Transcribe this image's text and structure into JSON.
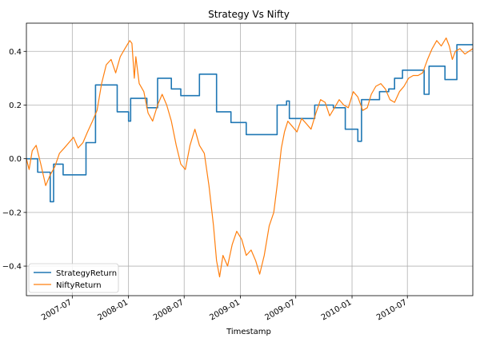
{
  "chart_data": {
    "type": "line",
    "title": "Strategy Vs Nifty",
    "xlabel": "Timestamp",
    "ylabel": "",
    "x_range": [
      "2007-02-01",
      "2011-01-31"
    ],
    "ylim": [
      -0.51,
      0.505
    ],
    "x_ticks": [
      {
        "date": "2007-07-01",
        "label": "2007-07"
      },
      {
        "date": "2008-01-01",
        "label": "2008-01"
      },
      {
        "date": "2008-07-01",
        "label": "2008-07"
      },
      {
        "date": "2009-01-01",
        "label": "2009-01"
      },
      {
        "date": "2009-07-01",
        "label": "2009-07"
      },
      {
        "date": "2010-01-01",
        "label": "2010-01"
      },
      {
        "date": "2010-07-01",
        "label": "2010-07"
      }
    ],
    "y_ticks": [
      {
        "value": 0.4,
        "label": "0.4"
      },
      {
        "value": 0.2,
        "label": "0.2"
      },
      {
        "value": 0.0,
        "label": "0.0"
      },
      {
        "value": -0.2,
        "label": "−0.2"
      },
      {
        "value": -0.4,
        "label": "−0.4"
      }
    ],
    "grid": true,
    "legend": "lower-left",
    "series": [
      {
        "name": "StrategyReturn",
        "color": "#1f77b4",
        "style": "step",
        "points": [
          [
            "2007-02-01",
            0.0
          ],
          [
            "2007-03-10",
            -0.05
          ],
          [
            "2007-04-20",
            -0.16
          ],
          [
            "2007-05-01",
            -0.02
          ],
          [
            "2007-06-01",
            -0.06
          ],
          [
            "2007-08-15",
            0.06
          ],
          [
            "2007-09-15",
            0.275
          ],
          [
            "2007-11-25",
            0.175
          ],
          [
            "2008-01-01",
            0.14
          ],
          [
            "2008-01-08",
            0.225
          ],
          [
            "2008-03-01",
            0.19
          ],
          [
            "2008-04-05",
            0.3
          ],
          [
            "2008-05-20",
            0.26
          ],
          [
            "2008-06-20",
            0.235
          ],
          [
            "2008-08-20",
            0.315
          ],
          [
            "2008-10-15",
            0.175
          ],
          [
            "2008-12-01",
            0.135
          ],
          [
            "2009-01-20",
            0.09
          ],
          [
            "2009-05-01",
            0.2
          ],
          [
            "2009-06-01",
            0.215
          ],
          [
            "2009-06-10",
            0.15
          ],
          [
            "2009-09-01",
            0.2
          ],
          [
            "2009-11-01",
            0.19
          ],
          [
            "2009-12-10",
            0.11
          ],
          [
            "2010-01-20",
            0.065
          ],
          [
            "2010-02-01",
            0.22
          ],
          [
            "2010-04-01",
            0.25
          ],
          [
            "2010-05-01",
            0.26
          ],
          [
            "2010-05-20",
            0.3
          ],
          [
            "2010-06-15",
            0.33
          ],
          [
            "2010-08-25",
            0.24
          ],
          [
            "2010-09-10",
            0.345
          ],
          [
            "2010-11-01",
            0.295
          ],
          [
            "2010-12-10",
            0.425
          ],
          [
            "2011-01-31",
            0.425
          ]
        ]
      },
      {
        "name": "NiftyReturn",
        "color": "#ff7f0e",
        "style": "line",
        "points": [
          [
            "2007-02-01",
            0.0
          ],
          [
            "2007-02-10",
            -0.04
          ],
          [
            "2007-02-20",
            0.03
          ],
          [
            "2007-03-05",
            0.05
          ],
          [
            "2007-03-20",
            -0.02
          ],
          [
            "2007-04-05",
            -0.1
          ],
          [
            "2007-04-20",
            -0.06
          ],
          [
            "2007-05-05",
            -0.03
          ],
          [
            "2007-05-20",
            0.02
          ],
          [
            "2007-06-05",
            0.04
          ],
          [
            "2007-06-20",
            0.06
          ],
          [
            "2007-07-05",
            0.08
          ],
          [
            "2007-07-20",
            0.04
          ],
          [
            "2007-08-05",
            0.06
          ],
          [
            "2007-08-20",
            0.1
          ],
          [
            "2007-09-05",
            0.14
          ],
          [
            "2007-09-20",
            0.18
          ],
          [
            "2007-10-05",
            0.28
          ],
          [
            "2007-10-20",
            0.35
          ],
          [
            "2007-11-05",
            0.37
          ],
          [
            "2007-11-20",
            0.32
          ],
          [
            "2007-12-05",
            0.38
          ],
          [
            "2007-12-20",
            0.41
          ],
          [
            "2008-01-05",
            0.44
          ],
          [
            "2008-01-12",
            0.43
          ],
          [
            "2008-01-20",
            0.3
          ],
          [
            "2008-01-25",
            0.38
          ],
          [
            "2008-02-05",
            0.28
          ],
          [
            "2008-02-20",
            0.25
          ],
          [
            "2008-03-05",
            0.17
          ],
          [
            "2008-03-20",
            0.14
          ],
          [
            "2008-04-05",
            0.2
          ],
          [
            "2008-04-20",
            0.24
          ],
          [
            "2008-05-05",
            0.2
          ],
          [
            "2008-05-20",
            0.14
          ],
          [
            "2008-06-05",
            0.05
          ],
          [
            "2008-06-20",
            -0.02
          ],
          [
            "2008-07-05",
            -0.04
          ],
          [
            "2008-07-20",
            0.05
          ],
          [
            "2008-08-05",
            0.11
          ],
          [
            "2008-08-20",
            0.05
          ],
          [
            "2008-09-05",
            0.02
          ],
          [
            "2008-09-20",
            -0.1
          ],
          [
            "2008-10-05",
            -0.25
          ],
          [
            "2008-10-15",
            -0.38
          ],
          [
            "2008-10-25",
            -0.44
          ],
          [
            "2008-11-05",
            -0.36
          ],
          [
            "2008-11-20",
            -0.4
          ],
          [
            "2008-12-05",
            -0.32
          ],
          [
            "2008-12-20",
            -0.27
          ],
          [
            "2009-01-05",
            -0.3
          ],
          [
            "2009-01-20",
            -0.36
          ],
          [
            "2009-02-05",
            -0.34
          ],
          [
            "2009-02-20",
            -0.38
          ],
          [
            "2009-03-05",
            -0.43
          ],
          [
            "2009-03-20",
            -0.36
          ],
          [
            "2009-04-05",
            -0.25
          ],
          [
            "2009-04-20",
            -0.2
          ],
          [
            "2009-05-01",
            -0.1
          ],
          [
            "2009-05-15",
            0.04
          ],
          [
            "2009-05-25",
            0.1
          ],
          [
            "2009-06-05",
            0.14
          ],
          [
            "2009-06-20",
            0.12
          ],
          [
            "2009-07-05",
            0.1
          ],
          [
            "2009-07-20",
            0.15
          ],
          [
            "2009-08-05",
            0.13
          ],
          [
            "2009-08-20",
            0.11
          ],
          [
            "2009-09-05",
            0.17
          ],
          [
            "2009-09-20",
            0.22
          ],
          [
            "2009-10-05",
            0.21
          ],
          [
            "2009-10-20",
            0.16
          ],
          [
            "2009-11-05",
            0.19
          ],
          [
            "2009-11-20",
            0.22
          ],
          [
            "2009-12-05",
            0.2
          ],
          [
            "2009-12-20",
            0.19
          ],
          [
            "2010-01-05",
            0.25
          ],
          [
            "2010-01-20",
            0.23
          ],
          [
            "2010-02-05",
            0.18
          ],
          [
            "2010-02-20",
            0.19
          ],
          [
            "2010-03-05",
            0.24
          ],
          [
            "2010-03-20",
            0.27
          ],
          [
            "2010-04-05",
            0.28
          ],
          [
            "2010-04-20",
            0.26
          ],
          [
            "2010-05-05",
            0.22
          ],
          [
            "2010-05-20",
            0.21
          ],
          [
            "2010-06-05",
            0.25
          ],
          [
            "2010-06-20",
            0.27
          ],
          [
            "2010-07-05",
            0.3
          ],
          [
            "2010-07-20",
            0.31
          ],
          [
            "2010-08-05",
            0.31
          ],
          [
            "2010-08-20",
            0.32
          ],
          [
            "2010-09-05",
            0.37
          ],
          [
            "2010-09-20",
            0.41
          ],
          [
            "2010-10-05",
            0.44
          ],
          [
            "2010-10-20",
            0.42
          ],
          [
            "2010-11-05",
            0.45
          ],
          [
            "2010-11-15",
            0.42
          ],
          [
            "2010-11-25",
            0.37
          ],
          [
            "2010-12-05",
            0.4
          ],
          [
            "2010-12-20",
            0.41
          ],
          [
            "2011-01-05",
            0.39
          ],
          [
            "2011-01-31",
            0.41
          ]
        ]
      }
    ]
  }
}
